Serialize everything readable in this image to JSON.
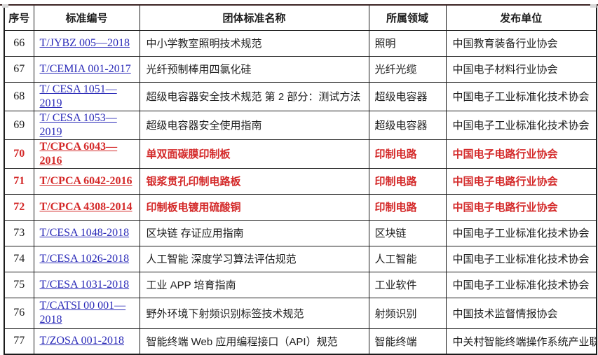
{
  "artifacts": {
    "top_line": "cropped-banner-edge",
    "handles": "resize-handle-squares"
  },
  "colors": {
    "link_blue": "#2a2ab8",
    "highlight_red": "#d42a2a",
    "border": "#1c1c1c"
  },
  "table": {
    "columns": [
      {
        "label": "序号"
      },
      {
        "label": "标准编号"
      },
      {
        "label": "团体标准名称"
      },
      {
        "label": "所属领域"
      },
      {
        "label": "发布单位"
      }
    ],
    "rows": [
      {
        "index": "66",
        "code": "T/JYBZ 005—2018",
        "name": "中小学教室照明技术规范",
        "field": "照明",
        "org": "中国教育装备行业协会",
        "highlight": false,
        "tall": false
      },
      {
        "index": "67",
        "code": "T/CEMIA 001-2017",
        "name": "光纤预制棒用四氯化硅",
        "field": "光纤光缆",
        "org": "中国电子材料行业协会",
        "highlight": false,
        "tall": false
      },
      {
        "index": "68",
        "code": "T/ CESA 1051—2019",
        "name": "超级电容器安全技术规范  第 2 部分：测试方法",
        "field": "超级电容器",
        "org": "中国电子工业标准化技术协会",
        "highlight": false,
        "tall": false
      },
      {
        "index": "69",
        "code": "T/ CESA 1053—2019",
        "name": "超级电容器安全使用指南",
        "field": "超级电容器",
        "org": "中国电子工业标准化技术协会",
        "highlight": false,
        "tall": false
      },
      {
        "index": "70",
        "code": "T/CPCA 6043—2016",
        "name": "单双面碳膜印制板",
        "field": "印制电路",
        "org": "中国电子电路行业协会",
        "highlight": true,
        "tall": false
      },
      {
        "index": "71",
        "code": "T/CPCA 6042-2016",
        "name": "银浆贯孔印制电路板",
        "field": "印制电路",
        "org": "中国电子电路行业协会",
        "highlight": true,
        "tall": false
      },
      {
        "index": "72",
        "code": "T/CPCA 4308-2014",
        "name": "印制板电镀用硫酸铜",
        "field": "印制电路",
        "org": "中国电子电路行业协会",
        "highlight": true,
        "tall": false
      },
      {
        "index": "73",
        "code": "T/CESA 1048-2018",
        "name": "区块链 存证应用指南",
        "field": "区块链",
        "org": "中国电子工业标准化技术协会",
        "highlight": false,
        "tall": false
      },
      {
        "index": "74",
        "code": "T/CESA 1026-2018",
        "name": "人工智能 深度学习算法评估规范",
        "field": "人工智能",
        "org": "中国电子工业标准化技术协会",
        "highlight": false,
        "tall": false
      },
      {
        "index": "75",
        "code": "T/CESA 1031-2018",
        "name": "工业 APP 培育指南",
        "field": "工业软件",
        "org": "中国电子工业标准化技术协会",
        "highlight": false,
        "tall": false
      },
      {
        "index": "76",
        "code": "T/CATSI 00 001—2018",
        "name": "野外环境下射频识别标签技术规范",
        "field": "射频识别",
        "org": "中国技术监督情报协会",
        "highlight": false,
        "tall": true
      },
      {
        "index": "77",
        "code": "T/ZOSA 001-2018",
        "name": "智能终端  Web 应用编程接口（API）规范",
        "field": "智能终端",
        "org": "中关村智能终端操作系统产业联",
        "highlight": false,
        "tall": false
      }
    ]
  }
}
